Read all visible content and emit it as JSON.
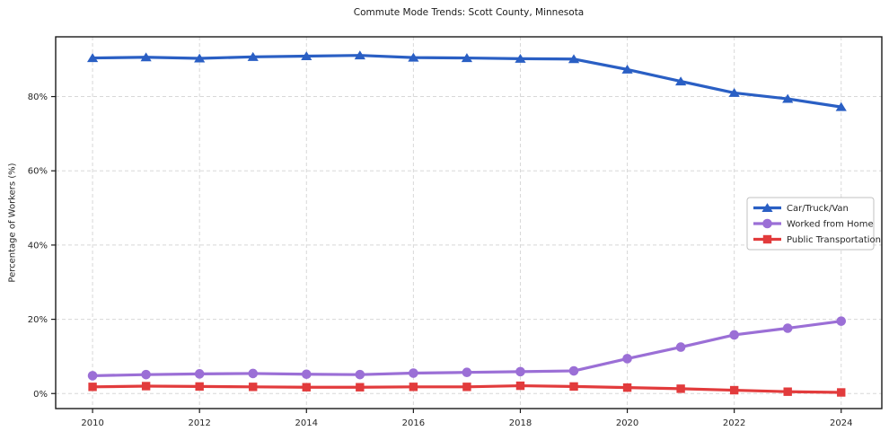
{
  "chart_data": {
    "type": "line",
    "title": "Commute Mode Trends: Scott County, Minnesota",
    "xlabel": "",
    "ylabel": "Percentage of Workers (%)",
    "x": [
      2010,
      2011,
      2012,
      2013,
      2014,
      2015,
      2016,
      2017,
      2018,
      2019,
      2020,
      2021,
      2022,
      2023,
      2024
    ],
    "series": [
      {
        "name": "Car/Truck/Van",
        "color": "#2a5fc4",
        "marker": "triangle",
        "values": [
          90.4,
          90.6,
          90.3,
          90.7,
          90.9,
          91.1,
          90.5,
          90.4,
          90.2,
          90.1,
          87.3,
          84.1,
          81.0,
          79.4,
          77.2
        ]
      },
      {
        "name": "Worked from Home",
        "color": "#9b6fd6",
        "marker": "circle",
        "values": [
          4.8,
          5.1,
          5.3,
          5.4,
          5.2,
          5.1,
          5.5,
          5.7,
          5.9,
          6.1,
          9.4,
          12.5,
          15.8,
          17.6,
          19.5
        ]
      },
      {
        "name": "Public Transportation",
        "color": "#e23b3c",
        "marker": "square",
        "values": [
          1.8,
          2.0,
          1.9,
          1.8,
          1.7,
          1.7,
          1.8,
          1.8,
          2.1,
          1.9,
          1.6,
          1.3,
          0.9,
          0.5,
          0.3
        ]
      }
    ],
    "xlim": [
      2009.31,
      2024.76
    ],
    "ylim": [
      -4.05,
      96.1
    ],
    "xticks": [
      2010,
      2012,
      2014,
      2016,
      2018,
      2020,
      2022,
      2024
    ],
    "xtick_labels": [
      "2010",
      "2012",
      "2014",
      "2016",
      "2018",
      "2020",
      "2022",
      "2024"
    ],
    "yticks": [
      0,
      20,
      40,
      60,
      80
    ],
    "ytick_labels": [
      "0%",
      "20%",
      "40%",
      "60%",
      "80%"
    ],
    "grid": true,
    "grid_style": "dashed",
    "legend_position": "center right",
    "colors": {
      "grid": "#d8d8d8",
      "spine": "#1a1a1a",
      "tick_text": "#262626",
      "legend_border": "#c0c0c0",
      "background": "#ffffff"
    }
  }
}
